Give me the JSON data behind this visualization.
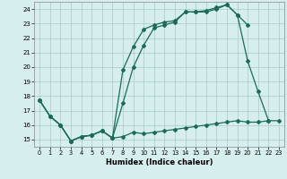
{
  "xlabel": "Humidex (Indice chaleur)",
  "bg_color": "#d6eeee",
  "grid_color": "#b0d0d0",
  "line_color": "#1a6b5a",
  "xlim": [
    -0.5,
    23.5
  ],
  "ylim": [
    14.5,
    24.5
  ],
  "xticks": [
    0,
    1,
    2,
    3,
    4,
    5,
    6,
    7,
    8,
    9,
    10,
    11,
    12,
    13,
    14,
    15,
    16,
    17,
    18,
    19,
    20,
    21,
    22,
    23
  ],
  "yticks": [
    15,
    16,
    17,
    18,
    19,
    20,
    21,
    22,
    23,
    24
  ],
  "line1_y": [
    17.7,
    16.6,
    16.0,
    14.9,
    15.2,
    15.3,
    15.6,
    15.1,
    15.2,
    15.5,
    15.4,
    15.5,
    15.6,
    15.7,
    15.8,
    15.9,
    16.0,
    16.1,
    16.2,
    16.3,
    16.2,
    16.2,
    16.3,
    16.3
  ],
  "line2_x": [
    0,
    1,
    2,
    3,
    4,
    5,
    6,
    7,
    8,
    9,
    10,
    11,
    12,
    13,
    14,
    15,
    16,
    17,
    18,
    19,
    20,
    21,
    22
  ],
  "line2_y": [
    17.7,
    16.6,
    16.0,
    14.9,
    15.2,
    15.3,
    15.6,
    15.1,
    17.5,
    20.0,
    21.5,
    22.7,
    22.9,
    23.1,
    23.8,
    23.8,
    23.8,
    24.0,
    24.3,
    23.6,
    20.4,
    18.3,
    16.3
  ],
  "line3_x": [
    0,
    1,
    2,
    3,
    4,
    5,
    6,
    7,
    8,
    9,
    10,
    11,
    12,
    13,
    14,
    15,
    16,
    17,
    18,
    19,
    20
  ],
  "line3_y": [
    17.7,
    16.6,
    16.0,
    14.9,
    15.2,
    15.3,
    15.6,
    15.1,
    19.8,
    21.4,
    22.6,
    22.9,
    23.1,
    23.2,
    23.8,
    23.8,
    23.9,
    24.1,
    24.3,
    23.6,
    22.9
  ]
}
